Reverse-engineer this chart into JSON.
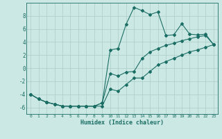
{
  "xlabel": "Humidex (Indice chaleur)",
  "background_color": "#cce8e4",
  "grid_color": "#aaccc8",
  "line_color": "#1a6e64",
  "xlim": [
    -0.5,
    23.5
  ],
  "ylim": [
    -7,
    10
  ],
  "xticks": [
    0,
    1,
    2,
    3,
    4,
    5,
    6,
    7,
    8,
    9,
    10,
    11,
    12,
    13,
    14,
    15,
    16,
    17,
    18,
    19,
    20,
    21,
    22,
    23
  ],
  "yticks": [
    -6,
    -4,
    -2,
    0,
    2,
    4,
    6,
    8
  ],
  "line1_x": [
    0,
    1,
    2,
    3,
    4,
    5,
    6,
    7,
    8,
    9,
    10,
    11,
    12,
    13,
    14,
    15,
    16,
    17,
    18,
    19,
    20,
    21,
    22,
    23
  ],
  "line1_y": [
    -4,
    -4.7,
    -5.2,
    -5.5,
    -5.8,
    -5.8,
    -5.8,
    -5.8,
    -5.8,
    -5.3,
    2.8,
    3.0,
    6.7,
    9.3,
    8.8,
    8.2,
    8.6,
    5.0,
    5.1,
    6.8,
    5.2,
    5.1,
    5.2,
    3.6
  ],
  "line2_x": [
    0,
    1,
    2,
    3,
    4,
    5,
    6,
    7,
    8,
    9,
    10,
    11,
    12,
    13,
    14,
    15,
    16,
    17,
    18,
    19,
    20,
    21,
    22,
    23
  ],
  "line2_y": [
    -4,
    -4.7,
    -5.2,
    -5.5,
    -5.8,
    -5.8,
    -5.8,
    -5.8,
    -5.8,
    -5.3,
    -0.8,
    -1.2,
    -0.6,
    -0.5,
    1.5,
    2.5,
    3.0,
    3.5,
    3.8,
    4.2,
    4.5,
    4.8,
    5.0,
    3.6
  ],
  "line3_x": [
    0,
    1,
    2,
    3,
    4,
    5,
    6,
    7,
    8,
    9,
    10,
    11,
    12,
    13,
    14,
    15,
    16,
    17,
    18,
    19,
    20,
    21,
    22,
    23
  ],
  "line3_y": [
    -4,
    -4.7,
    -5.2,
    -5.5,
    -5.8,
    -5.8,
    -5.8,
    -5.8,
    -5.8,
    -5.8,
    -3.2,
    -3.5,
    -2.5,
    -1.5,
    -1.5,
    -0.5,
    0.5,
    1.0,
    1.5,
    2.0,
    2.5,
    2.8,
    3.2,
    3.6
  ]
}
